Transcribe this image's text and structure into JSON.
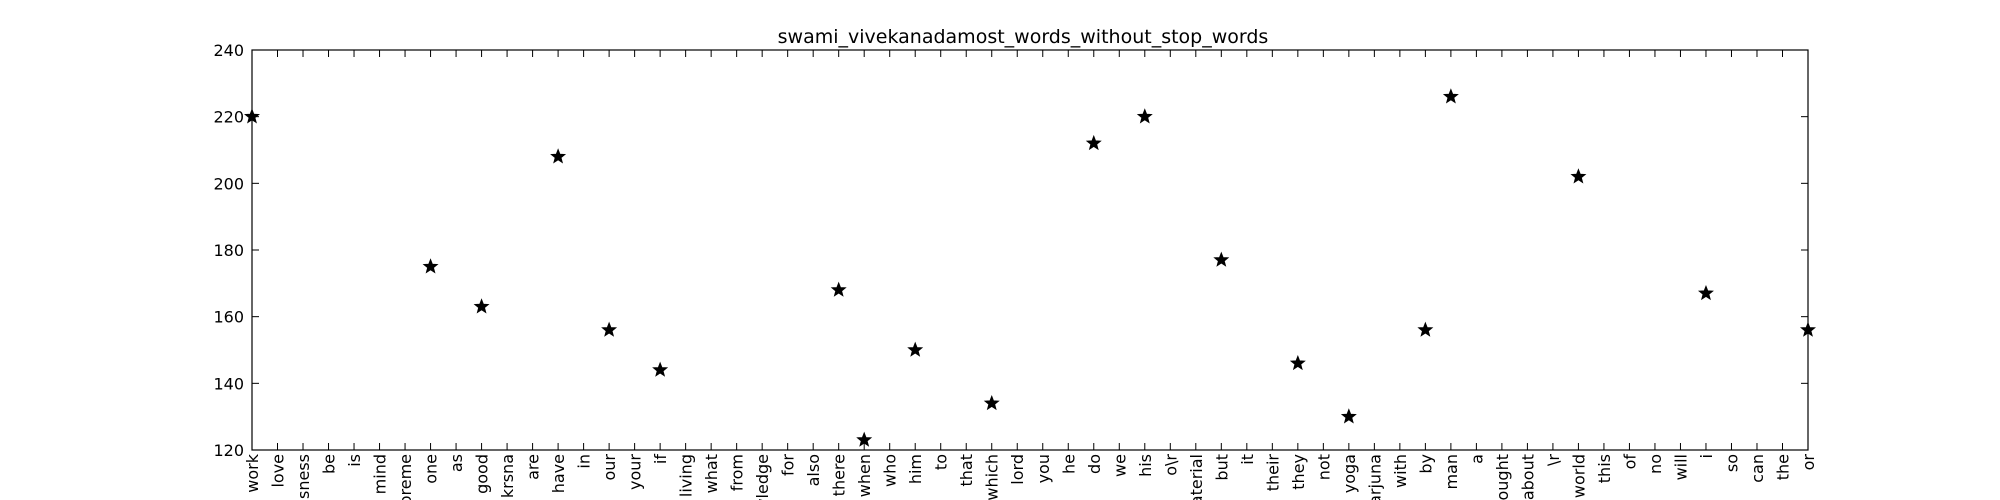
{
  "chart_data": {
    "type": "scatter",
    "title": "swami_vivekanadamost_words_without_stop_words",
    "xlabel": "",
    "ylabel": "",
    "ylim": [
      120,
      240
    ],
    "yticks": [
      120,
      140,
      160,
      180,
      200,
      220,
      240
    ],
    "grid": false,
    "marker": "star",
    "marker_color": "#000000",
    "categories": [
      "work",
      "love",
      "sness",
      "be",
      "is",
      "mind",
      "preme",
      "one",
      "as",
      "good",
      "krsna",
      "are",
      "have",
      "in",
      "our",
      "your",
      "if",
      "living",
      "what",
      "from",
      "wledge",
      "for",
      "also",
      "there",
      "when",
      "who",
      "him",
      "to",
      "that",
      "which",
      "lord",
      "you",
      "he",
      "do",
      "we",
      "his",
      "o\\r",
      "aterial",
      "but",
      "it",
      "their",
      "they",
      "not",
      "yoga",
      "arjuna",
      "with",
      "by",
      "man",
      "a",
      "ought",
      "about",
      "\\r",
      "world",
      "this",
      "of",
      "no",
      "will",
      "i",
      "so",
      "can",
      "the",
      "or"
    ],
    "points": [
      {
        "x": "work",
        "y": 220
      },
      {
        "x": "one",
        "y": 175
      },
      {
        "x": "good",
        "y": 163
      },
      {
        "x": "have",
        "y": 208
      },
      {
        "x": "our",
        "y": 156
      },
      {
        "x": "if",
        "y": 144
      },
      {
        "x": "there",
        "y": 168
      },
      {
        "x": "when",
        "y": 123
      },
      {
        "x": "him",
        "y": 150
      },
      {
        "x": "which",
        "y": 134
      },
      {
        "x": "do",
        "y": 212
      },
      {
        "x": "his",
        "y": 220
      },
      {
        "x": "but",
        "y": 177
      },
      {
        "x": "they",
        "y": 146
      },
      {
        "x": "yoga",
        "y": 130
      },
      {
        "x": "by",
        "y": 156
      },
      {
        "x": "man",
        "y": 226
      },
      {
        "x": "world",
        "y": 202
      },
      {
        "x": "i",
        "y": 167
      },
      {
        "x": "or",
        "y": 156
      }
    ]
  }
}
